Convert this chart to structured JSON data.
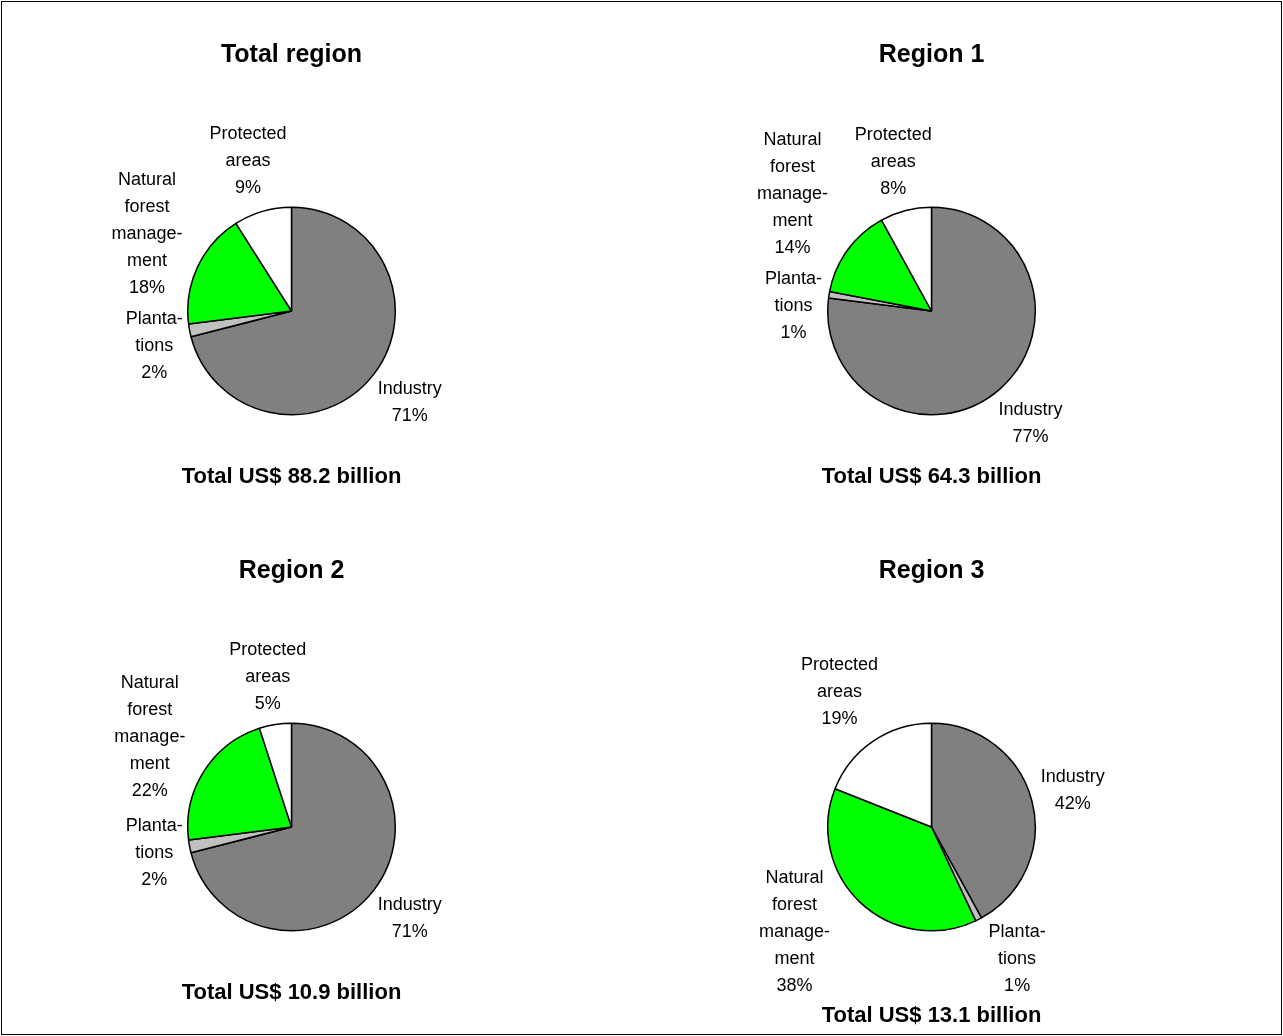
{
  "chart_data": [
    {
      "type": "pie",
      "title": "Total region",
      "categories": [
        "Industry",
        "Planta-\ntions",
        "Natural\nforest\nmanage-\nment",
        "Protected\nareas"
      ],
      "values": [
        71,
        2,
        18,
        9
      ],
      "colors": [
        "#808080",
        "#c0c0c0",
        "#00ff00",
        "#ffffff"
      ],
      "value_labels": [
        "71%",
        "2%",
        "18%",
        "9%"
      ],
      "annotations": [
        "Total US$ 88.2 billion"
      ]
    },
    {
      "type": "pie",
      "title": "Region 1",
      "categories": [
        "Industry",
        "Planta-\ntions",
        "Natural\nforest\nmanage-\nment",
        "Protected\nareas"
      ],
      "values": [
        77,
        1,
        14,
        8
      ],
      "colors": [
        "#808080",
        "#c0c0c0",
        "#00ff00",
        "#ffffff"
      ],
      "value_labels": [
        "77%",
        "1%",
        "14%",
        "8%"
      ],
      "annotations": [
        "Total US$ 64.3 billion"
      ]
    },
    {
      "type": "pie",
      "title": "Region 2",
      "categories": [
        "Industry",
        "Planta-\ntions",
        "Natural\nforest\nmanage-\nment",
        "Protected\nareas"
      ],
      "values": [
        71,
        2,
        22,
        5
      ],
      "colors": [
        "#808080",
        "#c0c0c0",
        "#00ff00",
        "#ffffff"
      ],
      "value_labels": [
        "71%",
        "2%",
        "22%",
        "5%"
      ],
      "annotations": [
        "Total US$ 10.9 billion"
      ]
    },
    {
      "type": "pie",
      "title": "Region 3",
      "categories": [
        "Industry",
        "Planta-\ntions",
        "Natural\nforest\nmanage-\nment",
        "Protected\nareas"
      ],
      "values": [
        42,
        1,
        38,
        19
      ],
      "colors": [
        "#808080",
        "#c0c0c0",
        "#00ff00",
        "#ffffff"
      ],
      "value_labels": [
        "42%",
        "1%",
        "38%",
        "19%"
      ],
      "annotations": [
        "Total US$ 13.1 billion"
      ]
    }
  ]
}
